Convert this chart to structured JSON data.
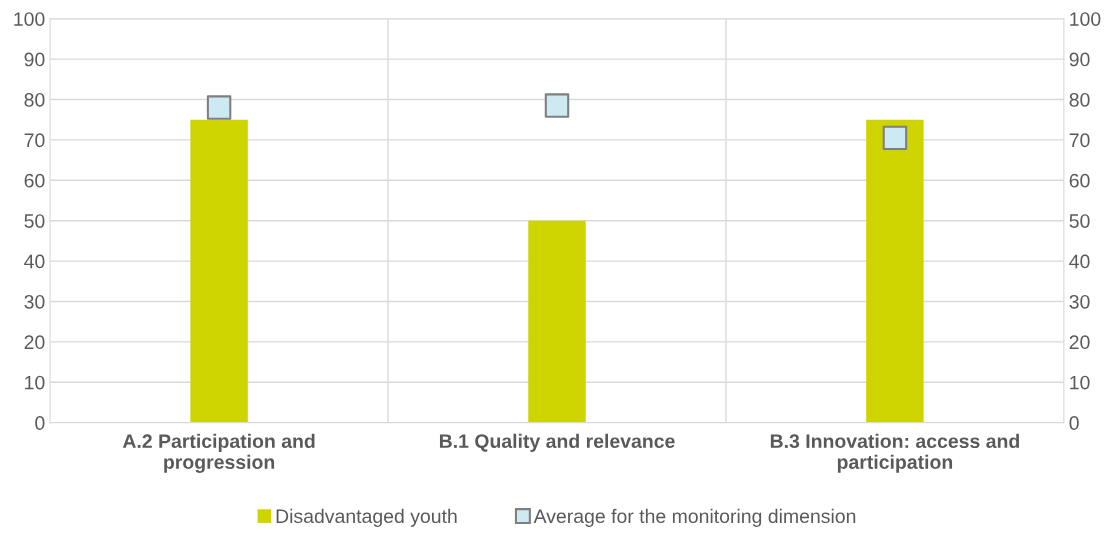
{
  "chart_data": {
    "type": "bar",
    "categories": [
      "A.2 Participation and\nprogression",
      "B.1 Quality and relevance",
      "B.3 Innovation: access and\nparticipation"
    ],
    "series": [
      {
        "name": "Disadvantaged youth",
        "color": "#cdd400",
        "values": [
          75,
          50,
          75
        ]
      },
      {
        "name": "Average for the monitoring dimension",
        "type": "scatter",
        "marker": "square",
        "color": "#cde9f2",
        "values": [
          78,
          78.5,
          70.5
        ]
      }
    ],
    "ylim": [
      0,
      100
    ],
    "yticks": [
      0,
      10,
      20,
      30,
      40,
      50,
      60,
      70,
      80,
      90,
      100
    ],
    "y2lim": [
      0,
      100
    ],
    "y2ticks": [
      0,
      10,
      20,
      30,
      40,
      50,
      60,
      70,
      80,
      90,
      100
    ],
    "grid": true,
    "legend": "bottom"
  }
}
